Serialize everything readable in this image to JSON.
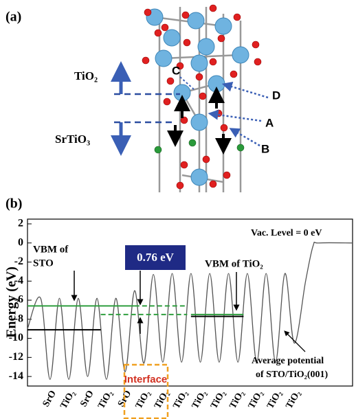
{
  "panel_a": {
    "label": "(a)",
    "layer_top": "TiO₂",
    "layer_bottom": "SrTiO₃",
    "sites": [
      "A",
      "B",
      "C",
      "D"
    ]
  },
  "chart_data": {
    "type": "line",
    "label": "(b)",
    "ylabel": "Energy (eV)",
    "ylim": [
      -15,
      2.5
    ],
    "yticks": [
      2,
      0,
      -2,
      -4,
      -6,
      -8,
      -10,
      -12,
      -14
    ],
    "xlim": [
      -1.2,
      16.1
    ],
    "categories": [
      "SrO",
      "TiO₂",
      "SrO",
      "TiO₂",
      "SrO",
      "TiO₂",
      "TiO₂",
      "TiO₂",
      "TiO₂",
      "TiO₂",
      "TiO₂",
      "TiO₂",
      "TiO₂",
      "TiO₂"
    ],
    "series": [
      {
        "color": "#555555",
        "x": [
          -1.2,
          -0.5,
          0,
          0.5,
          1,
          1.5,
          2,
          2.5,
          3,
          3.5,
          4,
          4.5,
          5,
          5.5,
          6,
          6.5,
          7,
          7.5,
          8,
          8.5,
          9,
          9.5,
          10,
          10.5,
          11,
          11.5,
          12,
          12.5,
          13,
          13.6,
          14,
          14.3,
          16.1
        ],
        "values": [
          -9,
          -5.8,
          -14.3,
          -5.8,
          -14.3,
          -5.8,
          -14,
          -5.8,
          -14.3,
          -5.8,
          -13.5,
          -5,
          -12.6,
          -3.3,
          -12.5,
          -3.2,
          -12.5,
          -3.2,
          -12.5,
          -3.2,
          -12.5,
          -3.2,
          -12.5,
          -3.2,
          -12.5,
          -3.2,
          -12.5,
          -3.2,
          -10.5,
          -4,
          -0.3,
          0,
          0
        ]
      }
    ],
    "reference_lines": [
      {
        "y": -6.6,
        "x": [
          -1.2,
          4.5
        ],
        "color": "#2e9e3e",
        "dashed": false
      },
      {
        "y": -9.1,
        "x": [
          -1.2,
          2.7
        ],
        "color": "#000000",
        "dashed": false
      },
      {
        "y": -6.6,
        "x": [
          4.5,
          7.3
        ],
        "color": "#2e9e3e",
        "dashed": true
      },
      {
        "y": -7.5,
        "x": [
          2.7,
          7.3
        ],
        "color": "#2e9e3e",
        "dashed": true
      },
      {
        "y": -7.5,
        "x": [
          7.5,
          10.3
        ],
        "color": "#2e9e3e",
        "dashed": false
      },
      {
        "y": -7.7,
        "x": [
          7.5,
          10.3
        ],
        "color": "#000000",
        "dashed": false
      }
    ],
    "annotations": {
      "vac": "Vac. Level = 0 eV",
      "vbm_sto": [
        "VBM of",
        "STO"
      ],
      "gap": "0.76 eV",
      "vbm_tio2": "VBM of TiO₂",
      "avg": [
        "Average potential",
        "of STO/TiO₂(001)"
      ],
      "interface": "Interface"
    }
  }
}
